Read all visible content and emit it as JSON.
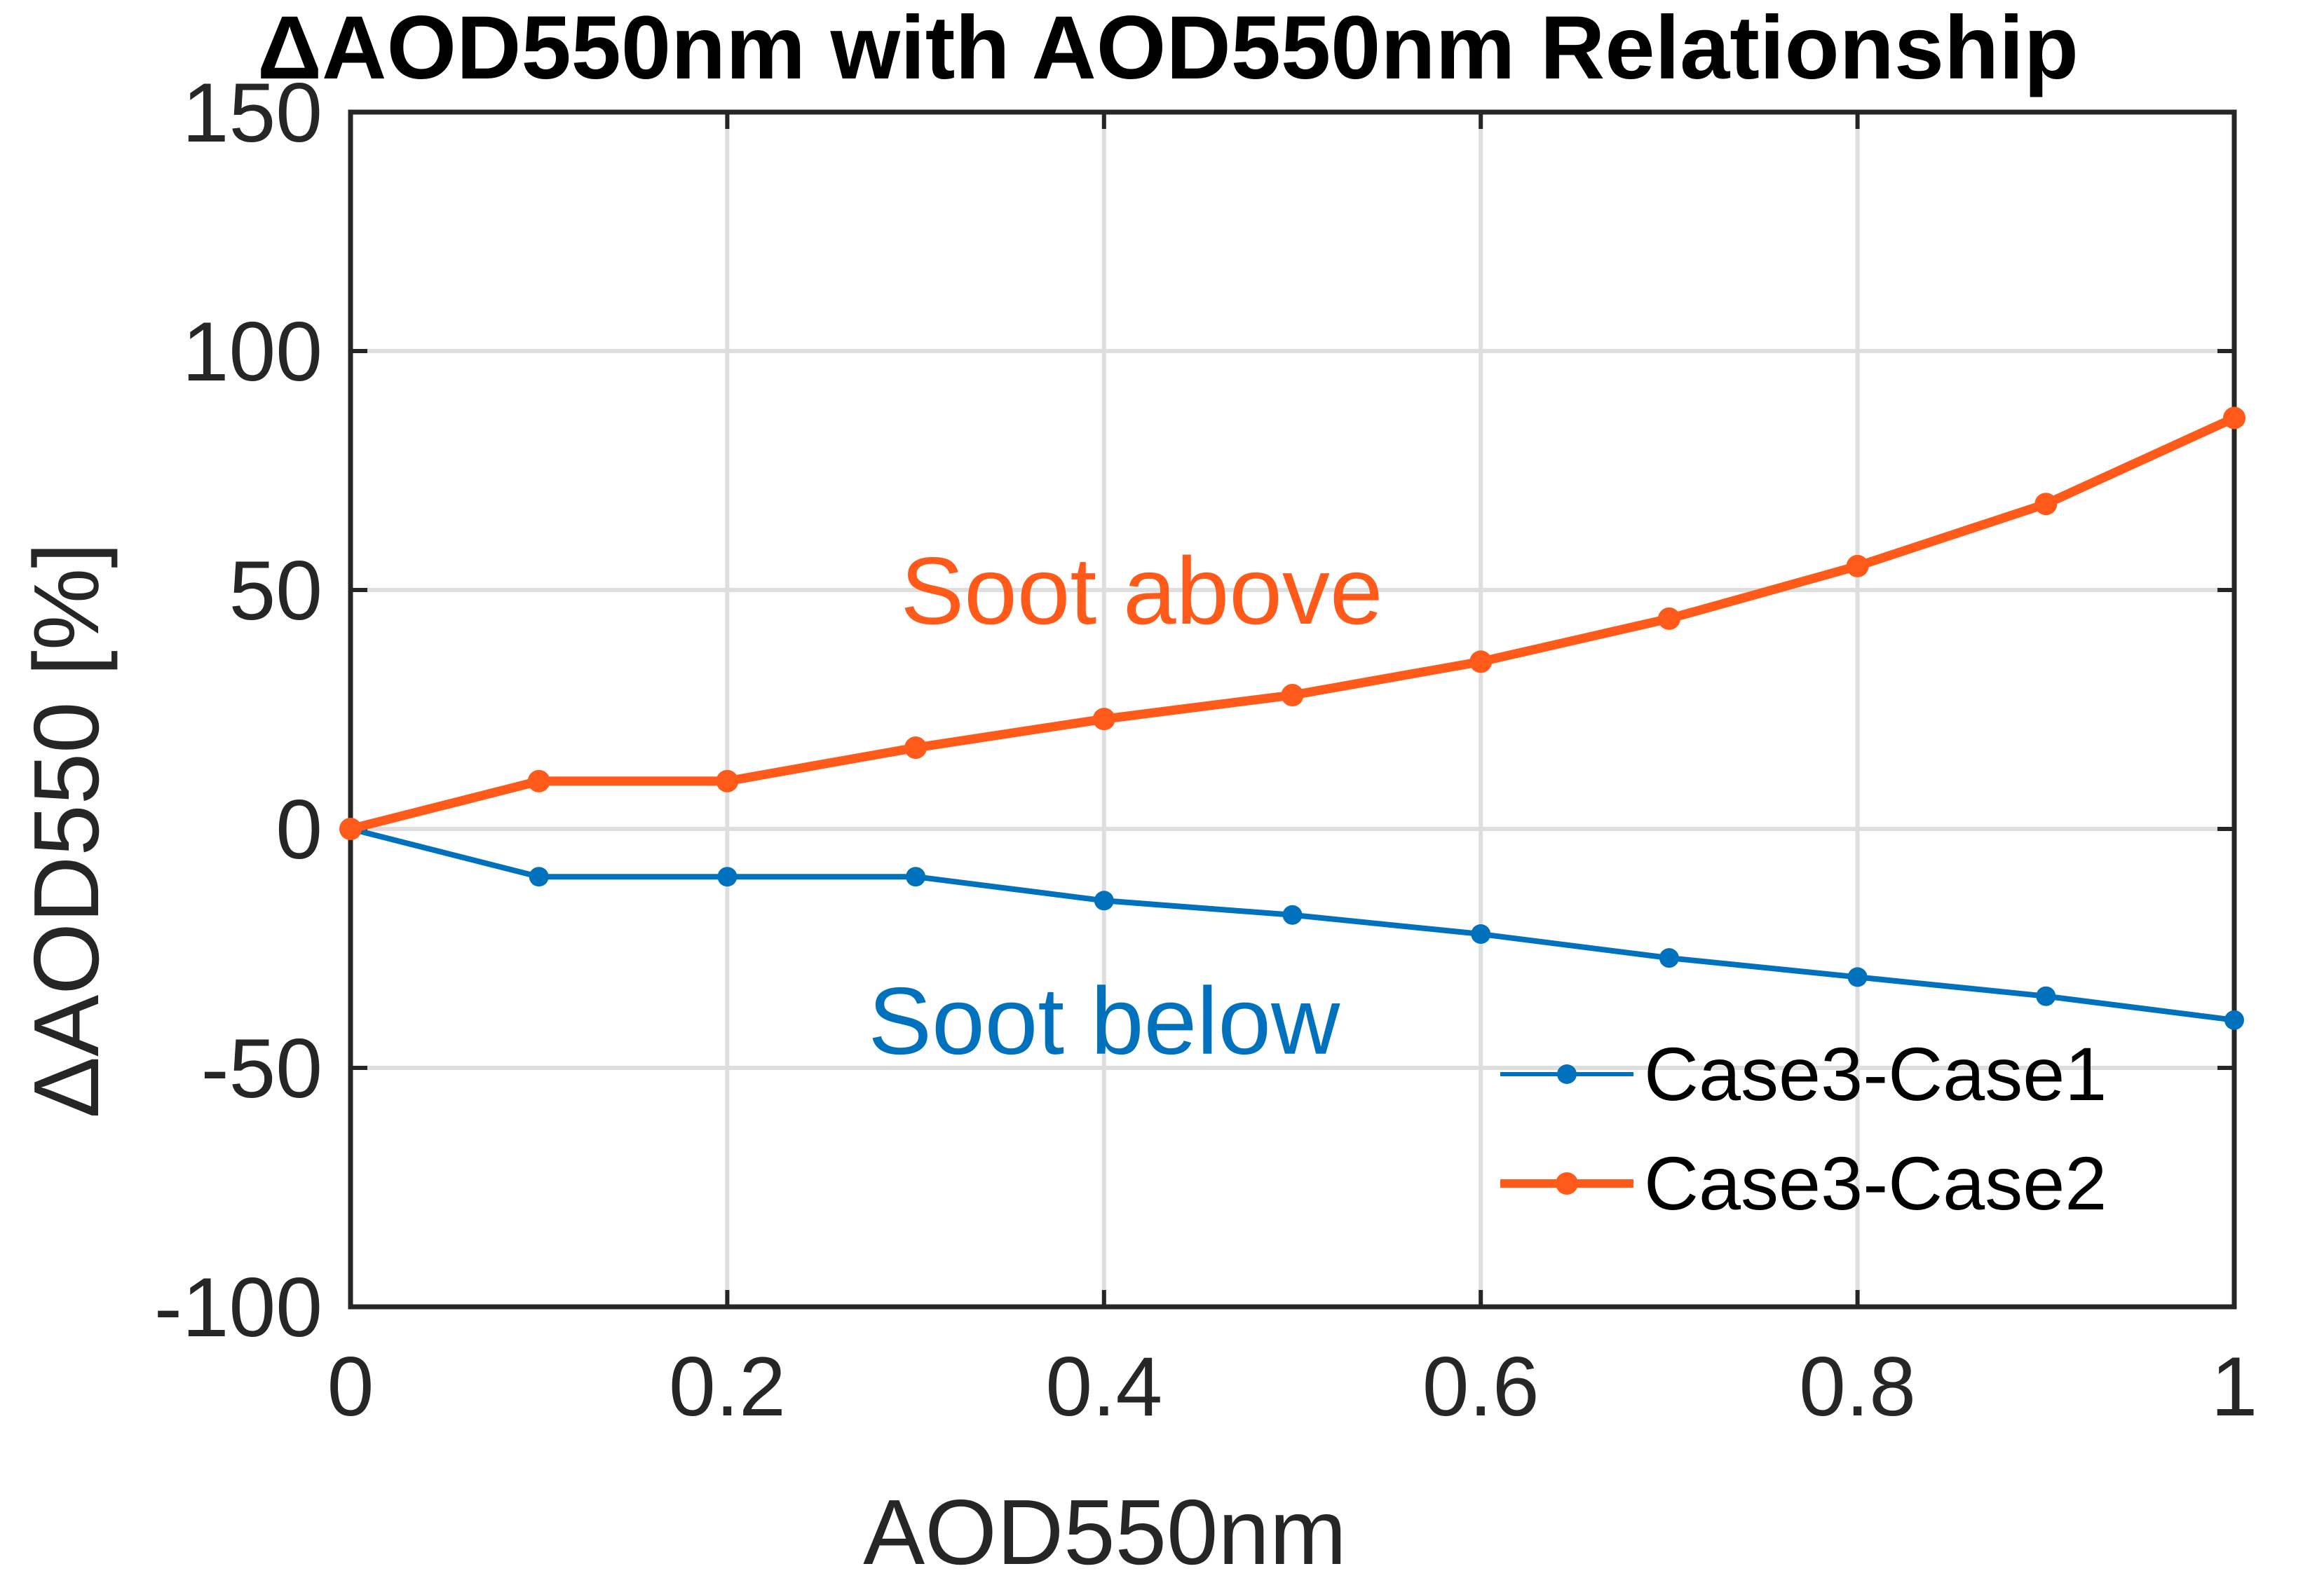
{
  "chart_data": {
    "type": "line",
    "title": "ΔAOD550nm with AOD550nm Relationship",
    "xlabel": "AOD550nm",
    "ylabel": "ΔAOD550 [%]",
    "xlim": [
      0,
      1
    ],
    "ylim": [
      -100,
      150
    ],
    "grid": true,
    "x_ticks": [
      0,
      0.2,
      0.4,
      0.6,
      0.8,
      1
    ],
    "x_tick_labels": [
      "0",
      "0.2",
      "0.4",
      "0.6",
      "0.8",
      "1"
    ],
    "y_ticks": [
      -100,
      -50,
      0,
      50,
      100,
      150
    ],
    "y_tick_labels": [
      "-100",
      "-50",
      "0",
      "50",
      "100",
      "150"
    ],
    "x": [
      0,
      0.1,
      0.2,
      0.3,
      0.4,
      0.5,
      0.6,
      0.7,
      0.8,
      0.9,
      1.0
    ],
    "series": [
      {
        "name": "Case3-Case1",
        "color": "#0072BD",
        "line_width_weight": "normal",
        "values": [
          0,
          -10,
          -10,
          -10,
          -15,
          -18,
          -22,
          -27,
          -31,
          -35,
          -40
        ]
      },
      {
        "name": "Case3-Case2",
        "color": "#FF5A1A",
        "line_width_weight": "bold",
        "values": [
          0,
          10,
          10,
          17,
          23,
          28,
          35,
          44,
          55,
          68,
          86
        ]
      }
    ],
    "legend_position": "bottom-right",
    "annotations": [
      {
        "text": "Soot above",
        "x": 0.42,
        "y": 50,
        "color": "#FF5A1A"
      },
      {
        "text": "Soot below",
        "x": 0.4,
        "y": -40,
        "color": "#0072BD"
      }
    ]
  }
}
